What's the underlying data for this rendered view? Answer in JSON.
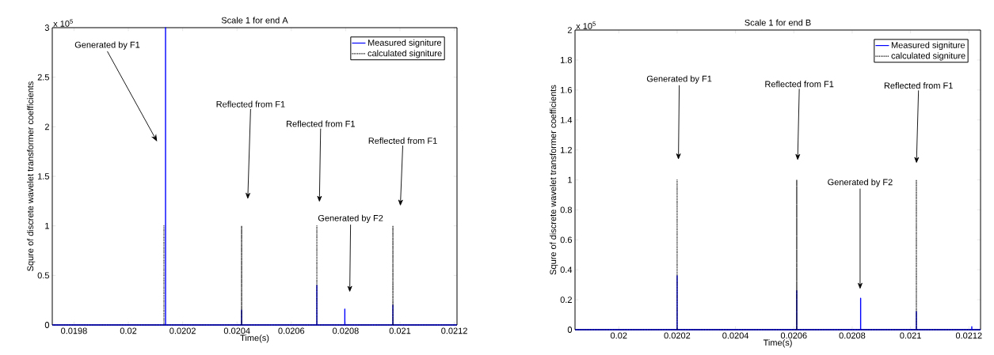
{
  "chart_data": [
    {
      "type": "line",
      "title": "Scale 1 for end A",
      "xlabel": "Time(s)",
      "ylabel": "Squre of discrete wavelet transformer coefficients",
      "xlim": [
        0.01972,
        0.02121
      ],
      "ylim": [
        0,
        3
      ],
      "xticks": [
        0.0198,
        0.02,
        0.0202,
        0.0204,
        0.0206,
        0.0208,
        0.021,
        0.0212
      ],
      "yticks": [
        0,
        0.5,
        1,
        1.5,
        2,
        2.5,
        3
      ],
      "legend": "top right",
      "series": [
        {
          "name": "Measured signiture",
          "color": "#0000ff",
          "line_style": "solid",
          "x": [
            0.01972,
            0.020137,
            0.020137,
            0.020137,
            0.020417,
            0.020417,
            0.020417,
            0.020694,
            0.020694,
            0.020694,
            0.020797,
            0.020797,
            0.020797,
            0.020974,
            0.020974,
            0.020974,
            0.02121
          ],
          "values": [
            0,
            0,
            3,
            0,
            0,
            0.15,
            0,
            0,
            0.4,
            0,
            0,
            0.16,
            0,
            0,
            0.2,
            0,
            0
          ]
        },
        {
          "name": "calculated signiture",
          "color": "#000000",
          "line_style": "dotted",
          "x": [
            0.01972,
            0.020131,
            0.020131,
            0.020131,
            0.020417,
            0.020417,
            0.020417,
            0.020694,
            0.020694,
            0.020694,
            0.020974,
            0.020974,
            0.020974,
            0.02121
          ],
          "values": [
            0,
            0,
            1,
            0,
            0,
            1,
            0,
            0,
            1,
            0,
            0,
            1,
            0,
            0
          ]
        }
      ],
      "annotations": [
        "x 10$^{5}$",
        "Generated by F1",
        "Reflected from F1",
        "Reflected from F1",
        "Reflected from F1",
        "Generated by F2"
      ]
    },
    {
      "type": "line",
      "title": "Scale 1 for end B",
      "xlabel": "Time(s)",
      "ylabel": "Squre of discrete wavelet transformer coefficients",
      "xlim": [
        0.01985,
        0.02124
      ],
      "ylim": [
        0,
        2
      ],
      "xticks": [
        0.02,
        0.0202,
        0.0204,
        0.0206,
        0.0208,
        0.021,
        0.0212
      ],
      "yticks": [
        0,
        0.2,
        0.4,
        0.6,
        0.8,
        1,
        1.2,
        1.4,
        1.6,
        1.8,
        2
      ],
      "legend": "top right",
      "series": [
        {
          "name": "Measured signiture",
          "color": "#0000ff",
          "line_style": "solid",
          "x": [
            0.01985,
            0.0202,
            0.0202,
            0.0202,
            0.02061,
            0.02061,
            0.02061,
            0.020829,
            0.020829,
            0.020829,
            0.02102,
            0.02102,
            0.02102,
            0.02121,
            0.02121,
            0.02121,
            0.02124
          ],
          "values": [
            0,
            0,
            0.36,
            0,
            0,
            0.26,
            0,
            0,
            0.21,
            0,
            0,
            0.12,
            0,
            0,
            0.02,
            0,
            0
          ]
        },
        {
          "name": "calculated signiture",
          "color": "#000000",
          "line_style": "dotted",
          "x": [
            0.01985,
            0.0202,
            0.0202,
            0.0202,
            0.02061,
            0.02061,
            0.02061,
            0.02102,
            0.02102,
            0.02102,
            0.02124
          ],
          "values": [
            0,
            0,
            1,
            0,
            0,
            1,
            0,
            0,
            1,
            0,
            0
          ]
        }
      ],
      "annotations": [
        "x 10$^{5}$",
        "Generated by F1",
        "Reflected from F1",
        "Reflected from F1",
        "Generated by F2"
      ]
    }
  ]
}
